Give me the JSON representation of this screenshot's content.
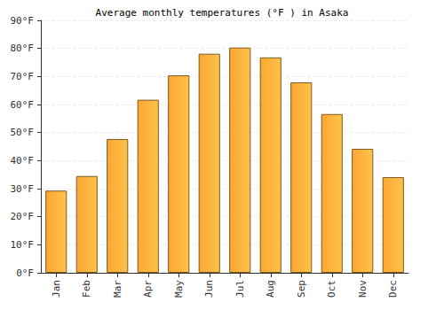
{
  "chart_data": {
    "type": "bar",
    "title": "Average monthly temperatures (°F ) in Asaka",
    "categories": [
      "Jan",
      "Feb",
      "Mar",
      "Apr",
      "May",
      "Jun",
      "Jul",
      "Aug",
      "Sep",
      "Oct",
      "Nov",
      "Dec"
    ],
    "values": [
      29.3,
      34.5,
      47.7,
      61.7,
      70.4,
      78.1,
      80.3,
      76.8,
      67.9,
      56.6,
      44.2,
      34.1
    ],
    "color": "#fba732",
    "ylim": [
      0,
      90
    ],
    "yticks": [
      {
        "value": 0,
        "label": "0°F"
      },
      {
        "value": 10,
        "label": "10°F"
      },
      {
        "value": 20,
        "label": "20°F"
      },
      {
        "value": 30,
        "label": "30°F"
      },
      {
        "value": 40,
        "label": "40°F"
      },
      {
        "value": 50,
        "label": "50°F"
      },
      {
        "value": 60,
        "label": "60°F"
      },
      {
        "value": 70,
        "label": "70°F"
      },
      {
        "value": 80,
        "label": "80°F"
      },
      {
        "value": 90,
        "label": "90°F"
      }
    ],
    "grid": true
  }
}
